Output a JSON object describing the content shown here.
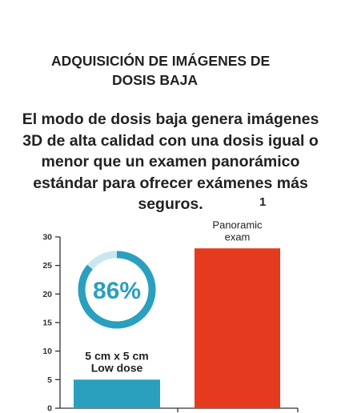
{
  "header": {
    "title_line1": "ADQUISICIÓN DE IMÁGENES DE",
    "title_line2": "DOSIS BAJA"
  },
  "intro": {
    "text": "El modo de dosis baja genera imágenes 3D de alta calidad con una dosis igual o menor que un examen panorámico estándar para ofrecer exámenes más seguros.",
    "footnote": "1"
  },
  "colors": {
    "low_dose": "#2a9fbe",
    "panoramic": "#e63a1e",
    "ring_track": "#c9e7f0",
    "axis": "#333333"
  },
  "chart_data": {
    "type": "bar",
    "categories": [
      "5 cm x 5 cm\nLow dose",
      "Panoramic\nexam"
    ],
    "values": [
      5,
      28
    ],
    "ylim": [
      0,
      30
    ],
    "yticks": [
      0,
      5,
      10,
      15,
      20,
      25,
      30
    ],
    "ring": {
      "label": "86%",
      "percent": 86
    }
  }
}
